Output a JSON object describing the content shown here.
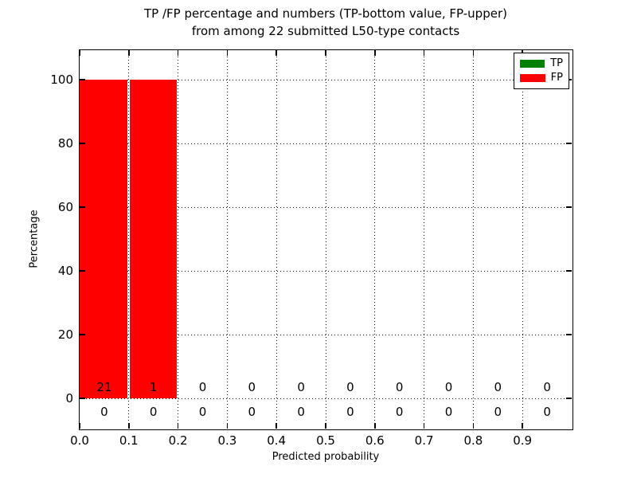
{
  "chart_data": {
    "type": "bar",
    "stacked": true,
    "title_lines": [
      "TP /FP percentage and numbers (TP-bottom value, FP-upper)",
      "from among 22 submitted L50-type contacts"
    ],
    "xlabel": "Predicted probability",
    "ylabel": "Percentage",
    "xlim": [
      0.0,
      1.0
    ],
    "ylim": [
      -9.5,
      110
    ],
    "bin_width": 0.1,
    "bin_starts": [
      0.0,
      0.1,
      0.2,
      0.3,
      0.4,
      0.5,
      0.6,
      0.7,
      0.8,
      0.9
    ],
    "x_ticks": [
      0.0,
      0.1,
      0.2,
      0.3,
      0.4,
      0.5,
      0.6,
      0.7,
      0.8,
      0.9
    ],
    "x_tick_labels": [
      "0.0",
      "0.1",
      "0.2",
      "0.3",
      "0.4",
      "0.5",
      "0.6",
      "0.7",
      "0.8",
      "0.9"
    ],
    "y_ticks": [
      0,
      20,
      40,
      60,
      80,
      100
    ],
    "y_tick_labels": [
      "0",
      "20",
      "40",
      "60",
      "80",
      "100"
    ],
    "grid": "dotted",
    "background_color": "#ffffff",
    "text_color": "#000000",
    "series": [
      {
        "name": "TP",
        "color": "#008000",
        "percentages": [
          0,
          0,
          0,
          0,
          0,
          0,
          0,
          0,
          0,
          0
        ],
        "counts": [
          0,
          0,
          0,
          0,
          0,
          0,
          0,
          0,
          0,
          0
        ],
        "count_row": "lower"
      },
      {
        "name": "FP",
        "color": "#ff0000",
        "percentages": [
          100,
          100,
          0,
          0,
          0,
          0,
          0,
          0,
          0,
          0
        ],
        "counts": [
          21,
          1,
          0,
          0,
          0,
          0,
          0,
          0,
          0,
          0
        ],
        "count_row": "upper"
      }
    ],
    "legend": {
      "position": "upper right",
      "entries": [
        {
          "label": "TP",
          "color": "#008000"
        },
        {
          "label": "FP",
          "color": "#ff0000"
        }
      ]
    }
  }
}
